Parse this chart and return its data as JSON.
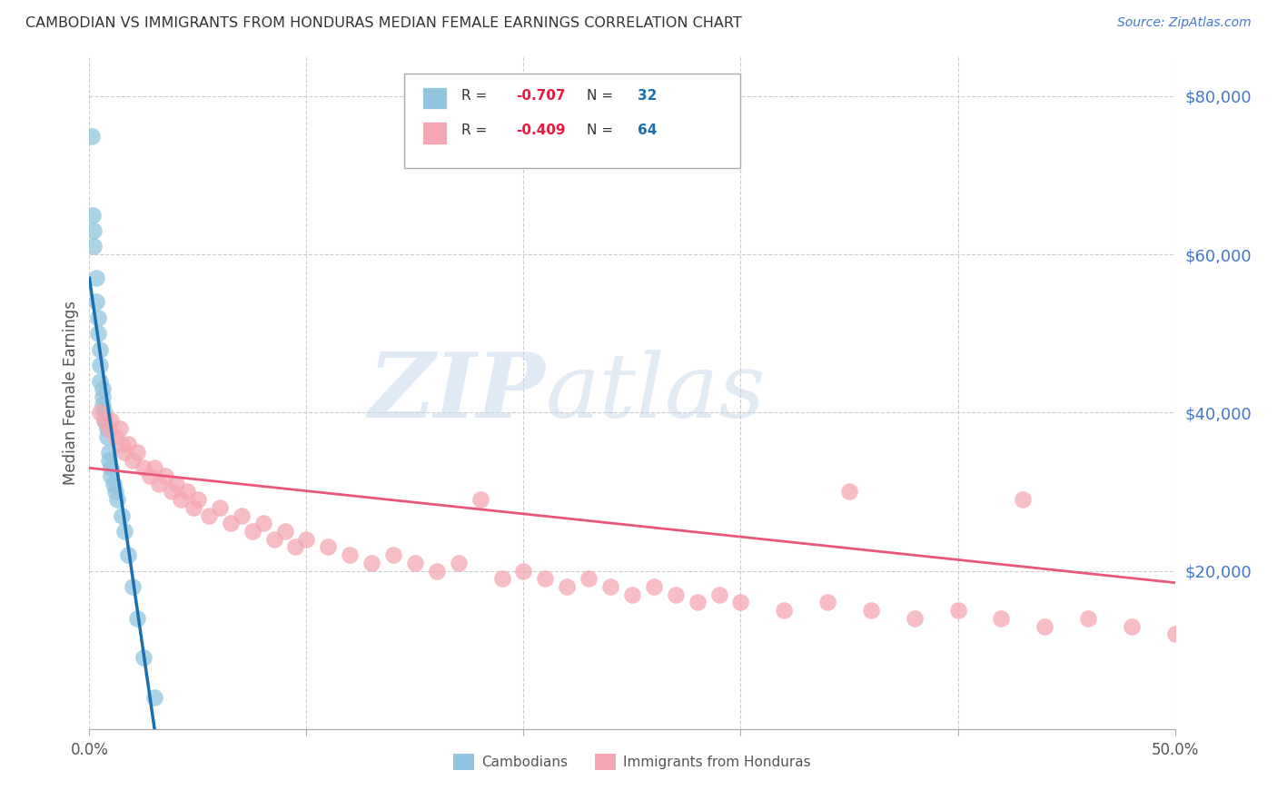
{
  "title": "CAMBODIAN VS IMMIGRANTS FROM HONDURAS MEDIAN FEMALE EARNINGS CORRELATION CHART",
  "source": "Source: ZipAtlas.com",
  "ylabel": "Median Female Earnings",
  "yticks": [
    0,
    20000,
    40000,
    60000,
    80000
  ],
  "ytick_labels": [
    "",
    "$20,000",
    "$40,000",
    "$60,000",
    "$80,000"
  ],
  "xlim": [
    0.0,
    0.5
  ],
  "ylim": [
    0,
    85000
  ],
  "watermark_zip": "ZIP",
  "watermark_atlas": "atlas",
  "series1_label": "Cambodians",
  "series2_label": "Immigrants from Honduras",
  "color_blue": "#92c5de",
  "color_pink": "#f4a7b2",
  "color_blue_line": "#1a6faf",
  "color_pink_line": "#e8567a",
  "color_r": "#e8193c",
  "color_n": "#1a6faf",
  "cambodian_x": [
    0.001,
    0.0015,
    0.002,
    0.002,
    0.003,
    0.003,
    0.004,
    0.004,
    0.005,
    0.005,
    0.005,
    0.006,
    0.006,
    0.006,
    0.007,
    0.007,
    0.008,
    0.008,
    0.009,
    0.009,
    0.01,
    0.01,
    0.011,
    0.012,
    0.013,
    0.015,
    0.016,
    0.018,
    0.02,
    0.022,
    0.025,
    0.03
  ],
  "cambodian_y": [
    75000,
    65000,
    63000,
    61000,
    57000,
    54000,
    52000,
    50000,
    48000,
    46000,
    44000,
    43000,
    42000,
    41000,
    40000,
    39000,
    38000,
    37000,
    35000,
    34000,
    33000,
    32000,
    31000,
    30000,
    29000,
    27000,
    25000,
    22000,
    18000,
    14000,
    9000,
    4000
  ],
  "honduras_x": [
    0.005,
    0.007,
    0.009,
    0.01,
    0.012,
    0.014,
    0.015,
    0.016,
    0.018,
    0.02,
    0.022,
    0.025,
    0.028,
    0.03,
    0.032,
    0.035,
    0.038,
    0.04,
    0.042,
    0.045,
    0.048,
    0.05,
    0.055,
    0.06,
    0.065,
    0.07,
    0.075,
    0.08,
    0.085,
    0.09,
    0.095,
    0.1,
    0.11,
    0.12,
    0.13,
    0.14,
    0.15,
    0.16,
    0.17,
    0.18,
    0.19,
    0.2,
    0.21,
    0.22,
    0.23,
    0.24,
    0.25,
    0.26,
    0.27,
    0.28,
    0.29,
    0.3,
    0.32,
    0.34,
    0.36,
    0.38,
    0.4,
    0.42,
    0.44,
    0.46,
    0.48,
    0.5,
    0.35,
    0.43
  ],
  "honduras_y": [
    40000,
    39000,
    38000,
    39000,
    37000,
    38000,
    36000,
    35000,
    36000,
    34000,
    35000,
    33000,
    32000,
    33000,
    31000,
    32000,
    30000,
    31000,
    29000,
    30000,
    28000,
    29000,
    27000,
    28000,
    26000,
    27000,
    25000,
    26000,
    24000,
    25000,
    23000,
    24000,
    23000,
    22000,
    21000,
    22000,
    21000,
    20000,
    21000,
    29000,
    19000,
    20000,
    19000,
    18000,
    19000,
    18000,
    17000,
    18000,
    17000,
    16000,
    17000,
    16000,
    15000,
    16000,
    15000,
    14000,
    15000,
    14000,
    13000,
    14000,
    13000,
    12000,
    30000,
    29000
  ],
  "blue_line_x": [
    0.0,
    0.03
  ],
  "blue_line_y": [
    57000,
    0
  ],
  "pink_line_x": [
    0.0,
    0.5
  ],
  "pink_line_y": [
    33000,
    18500
  ]
}
